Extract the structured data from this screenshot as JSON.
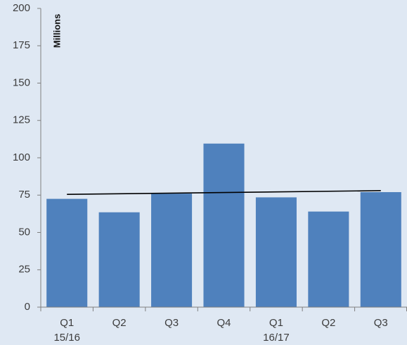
{
  "chart_data": {
    "type": "bar",
    "title": "",
    "xlabel": "",
    "ylabel": "Millions",
    "ylim": [
      0,
      200
    ],
    "yticks": [
      0,
      25,
      50,
      75,
      100,
      125,
      150,
      175,
      200
    ],
    "categories": [
      {
        "line1": "Q1",
        "line2": "15/16"
      },
      {
        "line1": "Q2",
        "line2": ""
      },
      {
        "line1": "Q3",
        "line2": ""
      },
      {
        "line1": "Q4",
        "line2": ""
      },
      {
        "line1": "Q1",
        "line2": "16/17"
      },
      {
        "line1": "Q2",
        "line2": ""
      },
      {
        "line1": "Q3",
        "line2": ""
      }
    ],
    "values": [
      72.5,
      63.5,
      76,
      109.5,
      73.5,
      64,
      77
    ],
    "trendline": {
      "start": 75.5,
      "end": 78
    },
    "grid": false,
    "legend": "none",
    "colors": {
      "bar": "#4f81bd",
      "trendline": "#000000",
      "axis": "#7f7f7f",
      "background": "#dfe8f3"
    }
  }
}
